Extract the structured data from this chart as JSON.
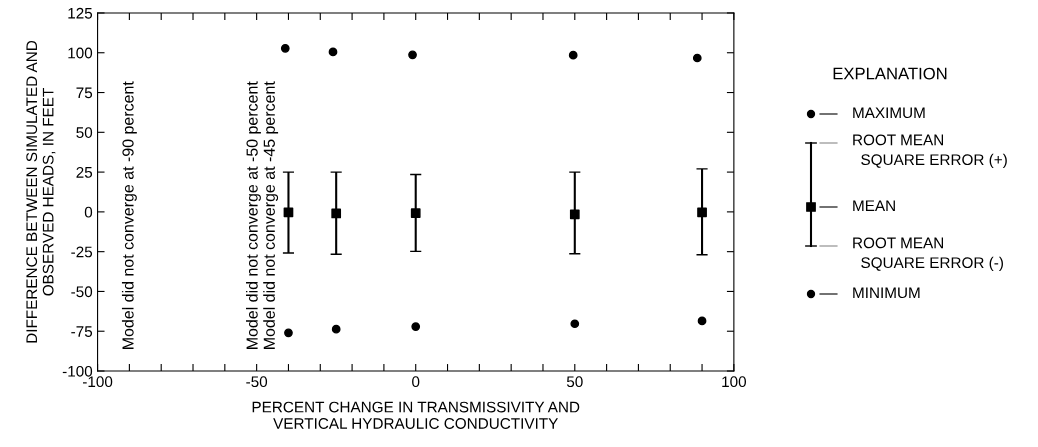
{
  "chart_data": {
    "type": "scatter",
    "xlabel": "PERCENT CHANGE IN TRANSMISSIVITY AND\nVERTICAL HYDRAULIC CONDUCTIVITY",
    "ylabel": "DIFFERENCE BETWEEN SIMULATED AND\nOBSERVED HEADS, IN FEET",
    "legend_title": "EXPLANATION",
    "legend": "right",
    "x": [
      -40,
      -25,
      0,
      50,
      90
    ],
    "series": [
      {
        "name": "MAXIMUM",
        "color": "#000000",
        "marker": "circle",
        "x": [
          -41,
          -26,
          -1,
          49.5,
          88.5
        ],
        "values": [
          102.8,
          100.5,
          98.7,
          98.5,
          96.7
        ]
      },
      {
        "name": "MEAN",
        "color": "#000000",
        "marker": "square",
        "values": [
          -0.3,
          -1,
          -0.8,
          -1.5,
          -0.3
        ],
        "errors": [
          [
            -25.8,
            25
          ],
          [
            -26.6,
            25
          ],
          [
            -24.8,
            23.5
          ],
          [
            -26.3,
            25
          ],
          [
            -26.9,
            27
          ]
        ]
      },
      {
        "name": "MINIMUM",
        "color": "#000000",
        "marker": "circle",
        "values": [
          -76,
          -73.7,
          -72.1,
          -70.3,
          -68.5
        ]
      }
    ],
    "annotations": [
      "Model did not converge at -90 percent",
      "Model did not converge at -50 percent",
      "Model did not converge at -45 percent",
      "ROOT MEAN\n  SQUARE ERROR (+)",
      "ROOT MEAN\n  SQUARE ERROR (-)"
    ],
    "xlim": [
      -100,
      100
    ],
    "xticks": [
      -100,
      {
        "value": -90,
        "label": null
      },
      {
        "value": -80,
        "label": null
      },
      {
        "value": -70,
        "label": null
      },
      {
        "value": -60,
        "label": null
      },
      -50,
      {
        "value": -40,
        "label": null
      },
      {
        "value": -30,
        "label": null
      },
      {
        "value": -20,
        "label": null
      },
      {
        "value": -10,
        "label": null
      },
      0,
      {
        "value": 10,
        "label": null
      },
      {
        "value": 20,
        "label": null
      },
      {
        "value": 30,
        "label": null
      },
      {
        "value": 40,
        "label": null
      },
      50,
      {
        "value": 60,
        "label": null
      },
      {
        "value": 70,
        "label": null
      },
      {
        "value": 80,
        "label": null
      },
      {
        "value": 90,
        "label": null
      },
      100
    ],
    "ylim": [
      -100,
      125
    ],
    "yticks": [
      -100,
      -75,
      -50,
      -25,
      0,
      25,
      50,
      75,
      100,
      125
    ],
    "grid": false
  }
}
